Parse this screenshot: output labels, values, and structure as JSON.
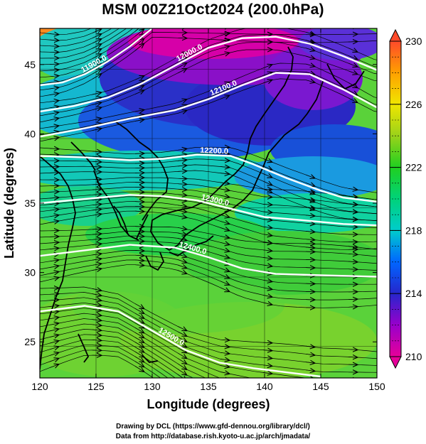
{
  "title": "MSM 00Z21Oct2024 (200.0hPa)",
  "credits": {
    "line1": "Drawing by DCL (https://www.gfd-dennou.org/library/dcl/)",
    "line2": "Data from http://database.rish.kyoto-u.ac.jp/arch/jmadata/"
  },
  "chart_data": {
    "type": "heatmap",
    "title": "MSM 00Z21Oct2024 (200.0hPa)",
    "xlabel": "Longitude (degrees)",
    "ylabel": "Latitude  (degrees)",
    "xlim": [
      120,
      150
    ],
    "ylim": [
      22.4,
      47.6
    ],
    "xticks": [
      "120",
      "125",
      "130",
      "135",
      "140",
      "145",
      "150"
    ],
    "yticks": [
      "25",
      "30",
      "35",
      "40",
      "45"
    ],
    "colorbar": {
      "min": 210,
      "max": 230,
      "ticks": [
        "210",
        "214",
        "218",
        "222",
        "226",
        "230"
      ],
      "colors": [
        "#e60099",
        "#9900cc",
        "#2626cc",
        "#0066ff",
        "#00cccc",
        "#00d27a",
        "#20d020",
        "#9ad21a",
        "#f0e600",
        "#ffa000",
        "#ff4a2a"
      ]
    },
    "field_description": "temperature (K) colour shading; geopotential height contours (m); wind streamlines",
    "contours": [
      {
        "label": "11900.0",
        "points": [
          [
            120,
            43.5
          ],
          [
            122,
            43.7
          ],
          [
            124,
            44.3
          ],
          [
            126,
            45.2
          ],
          [
            128,
            46.3
          ],
          [
            130,
            47.6
          ]
        ]
      },
      {
        "label": "12000.0",
        "points": [
          [
            120,
            41.6
          ],
          [
            123,
            42
          ],
          [
            126,
            42.6
          ],
          [
            129,
            43.6
          ],
          [
            132,
            44.9
          ],
          [
            135,
            46.2
          ],
          [
            138,
            46.9
          ],
          [
            141,
            47
          ],
          [
            144,
            46.5
          ],
          [
            147,
            45.6
          ],
          [
            150,
            44.6
          ]
        ]
      },
      {
        "label": "12100.0",
        "points": [
          [
            120,
            39.8
          ],
          [
            124,
            40.4
          ],
          [
            128,
            41.1
          ],
          [
            132,
            41.7
          ],
          [
            135,
            42.5
          ],
          [
            138,
            43.5
          ],
          [
            141,
            44.4
          ],
          [
            144,
            44.3
          ],
          [
            147,
            43.2
          ],
          [
            150,
            41.9
          ]
        ]
      },
      {
        "label": "12200.0",
        "points": [
          [
            120,
            38.4
          ],
          [
            124,
            38.3
          ],
          [
            128,
            38.1
          ],
          [
            131,
            38.2
          ],
          [
            134,
            38.5
          ],
          [
            137,
            38.4
          ],
          [
            139,
            37.8
          ],
          [
            142,
            36.8
          ],
          [
            145,
            35.9
          ],
          [
            147,
            35.4
          ],
          [
            150,
            35.1
          ]
        ]
      },
      {
        "label": "12300.0",
        "points": [
          [
            120,
            35
          ],
          [
            124,
            35.3
          ],
          [
            128,
            35.6
          ],
          [
            131,
            35.5
          ],
          [
            134,
            35.2
          ],
          [
            137,
            34.6
          ],
          [
            140,
            34
          ],
          [
            143,
            33.8
          ],
          [
            147,
            33.5
          ],
          [
            150,
            33.4
          ]
        ]
      },
      {
        "label": "12400.0",
        "points": [
          [
            120,
            31.2
          ],
          [
            124,
            31.6
          ],
          [
            128,
            32
          ],
          [
            132,
            31.8
          ],
          [
            135,
            31.1
          ],
          [
            138,
            30.3
          ],
          [
            141,
            29.9
          ],
          [
            145,
            29.8
          ],
          [
            150,
            29.7
          ]
        ]
      },
      {
        "label": "12500.0",
        "points": [
          [
            120,
            27.2
          ],
          [
            124,
            27.6
          ],
          [
            127,
            27.2
          ],
          [
            130,
            25.8
          ],
          [
            133,
            24.4
          ],
          [
            136,
            23.5
          ],
          [
            139,
            23.1
          ],
          [
            142,
            22.8
          ],
          [
            145,
            22.5
          ]
        ]
      }
    ]
  }
}
